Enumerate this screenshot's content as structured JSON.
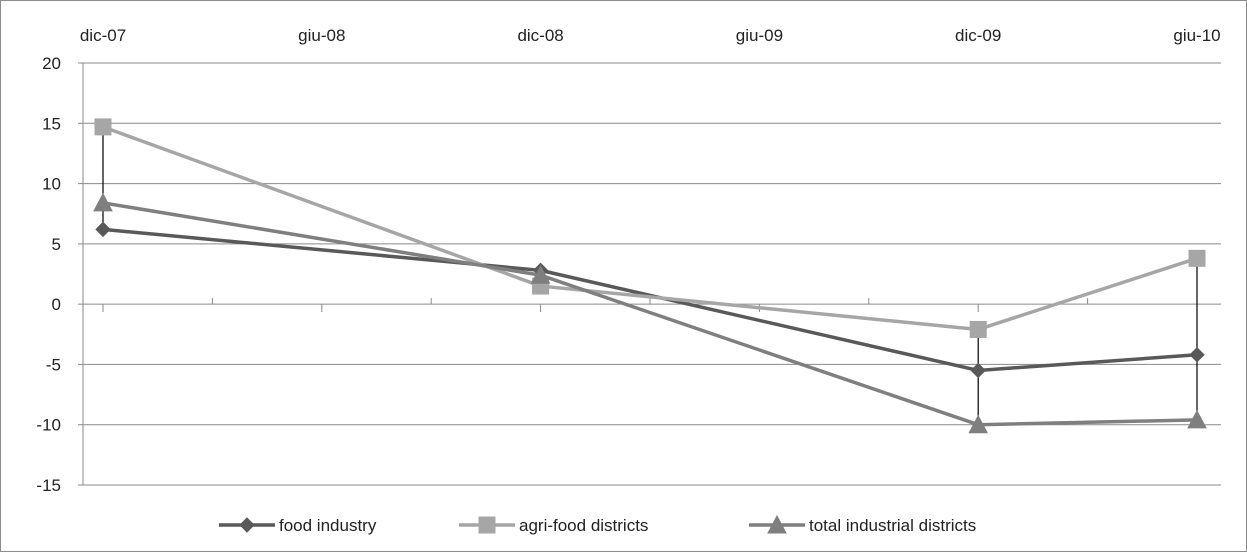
{
  "chart_data": {
    "type": "line",
    "x_categories": [
      "dic-07",
      "giu-08",
      "dic-08",
      "giu-09",
      "dic-09",
      "giu-10"
    ],
    "y_ticks": [
      "20",
      "15",
      "10",
      "5",
      "0",
      "-5",
      "-10",
      "-15"
    ],
    "ylim": [
      -15,
      20
    ],
    "y_step": 5,
    "grid": true,
    "legend_position": "bottom",
    "series": [
      {
        "name": "food industry",
        "marker": "diamond",
        "color": "#595959",
        "points": [
          {
            "x": "dic-07",
            "y": 6.2
          },
          {
            "x": "dic-08",
            "y": 2.8
          },
          {
            "x": "dic-09",
            "y": -5.5
          },
          {
            "x": "giu-10",
            "y": -4.2
          }
        ]
      },
      {
        "name": "agri-food districts",
        "marker": "square",
        "color": "#a6a6a6",
        "points": [
          {
            "x": "dic-07",
            "y": 14.7
          },
          {
            "x": "dic-08",
            "y": 1.5
          },
          {
            "x": "dic-09",
            "y": -2.1
          },
          {
            "x": "giu-10",
            "y": 3.8
          }
        ]
      },
      {
        "name": "total industrial districts",
        "marker": "triangle",
        "color": "#7f7f7f",
        "points": [
          {
            "x": "dic-07",
            "y": 8.4
          },
          {
            "x": "dic-08",
            "y": 2.4
          },
          {
            "x": "dic-09",
            "y": -10.0
          },
          {
            "x": "giu-10",
            "y": -9.6
          }
        ]
      }
    ],
    "high_low_lines": true
  }
}
